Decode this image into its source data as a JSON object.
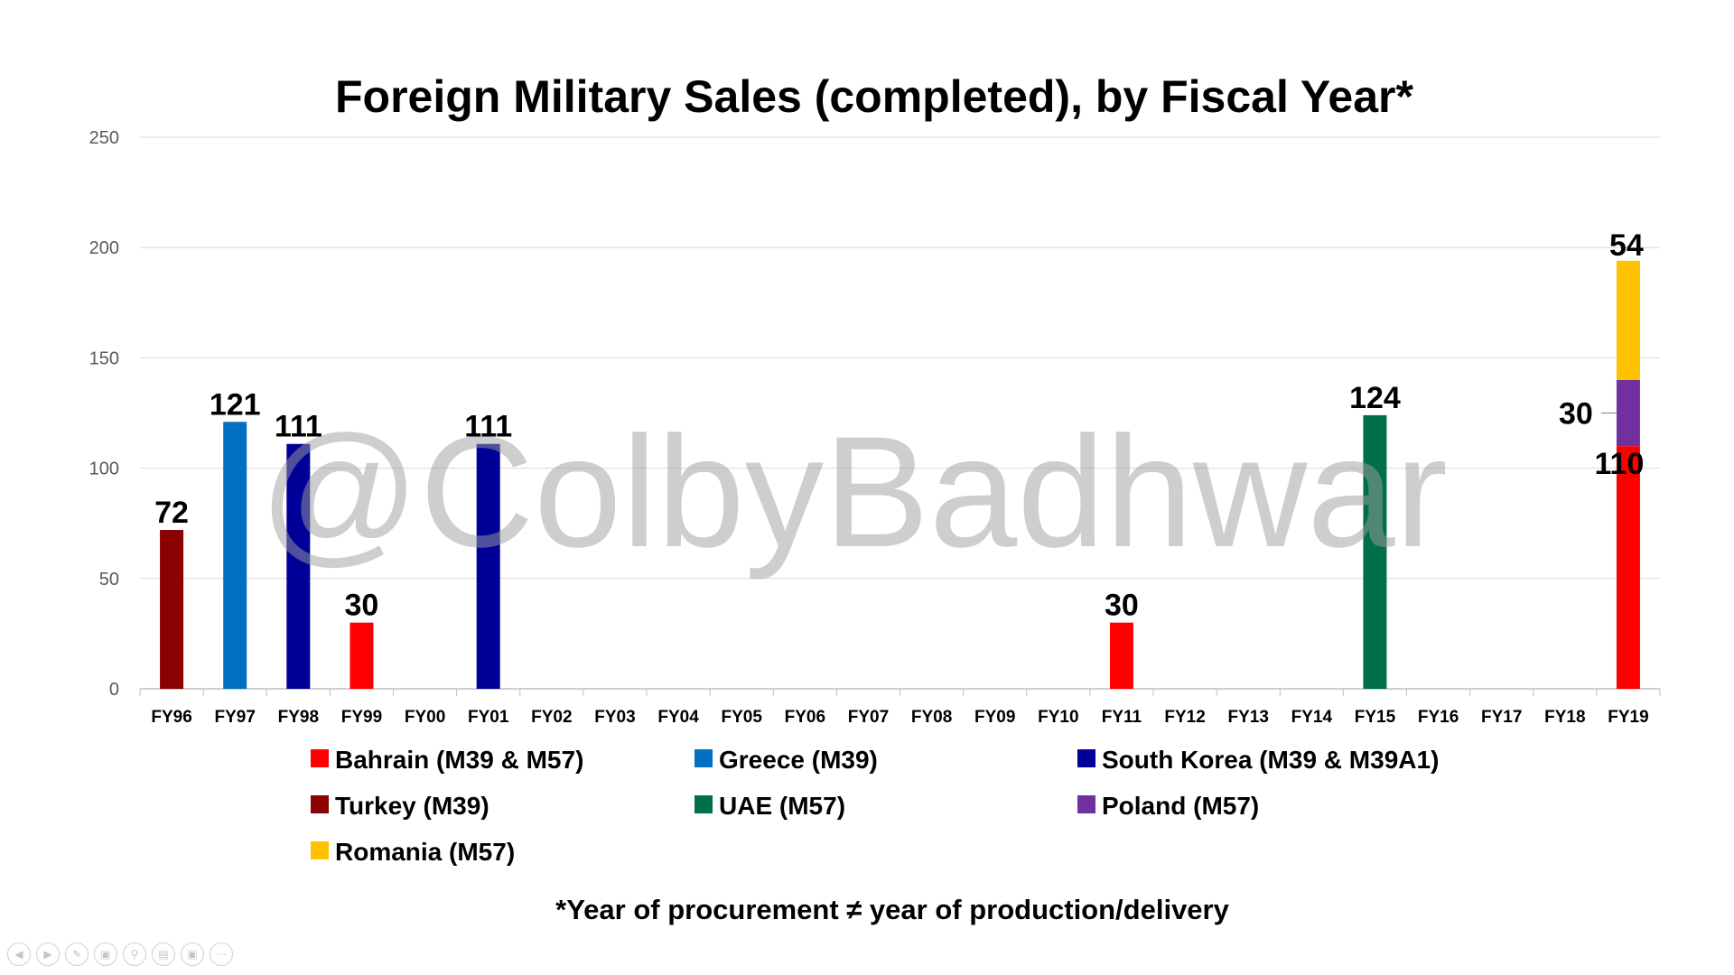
{
  "chart_data": {
    "type": "bar",
    "stacked": true,
    "title": "Foreign Military Sales (completed), by Fiscal Year*",
    "xlabel": "",
    "ylabel": "",
    "ylim": [
      0,
      250
    ],
    "yticks": [
      0,
      50,
      100,
      150,
      200,
      250
    ],
    "grid": true,
    "categories": [
      "FY96",
      "FY97",
      "FY98",
      "FY99",
      "FY00",
      "FY01",
      "FY02",
      "FY03",
      "FY04",
      "FY05",
      "FY06",
      "FY07",
      "FY08",
      "FY09",
      "FY10",
      "FY11",
      "FY12",
      "FY13",
      "FY14",
      "FY15",
      "FY16",
      "FY17",
      "FY18",
      "FY19"
    ],
    "series": [
      {
        "name": "Bahrain (M39 & M57)",
        "color": "#ff0000",
        "values": [
          0,
          0,
          0,
          30,
          0,
          0,
          0,
          0,
          0,
          0,
          0,
          0,
          0,
          0,
          0,
          30,
          0,
          0,
          0,
          0,
          0,
          0,
          0,
          110
        ]
      },
      {
        "name": "Greece (M39)",
        "color": "#0070c0",
        "values": [
          0,
          121,
          0,
          0,
          0,
          0,
          0,
          0,
          0,
          0,
          0,
          0,
          0,
          0,
          0,
          0,
          0,
          0,
          0,
          0,
          0,
          0,
          0,
          0
        ]
      },
      {
        "name": "South Korea (M39 & M39A1)",
        "color": "#000099",
        "values": [
          0,
          0,
          111,
          0,
          0,
          111,
          0,
          0,
          0,
          0,
          0,
          0,
          0,
          0,
          0,
          0,
          0,
          0,
          0,
          0,
          0,
          0,
          0,
          0
        ]
      },
      {
        "name": "Turkey (M39)",
        "color": "#8b0000",
        "values": [
          72,
          0,
          0,
          0,
          0,
          0,
          0,
          0,
          0,
          0,
          0,
          0,
          0,
          0,
          0,
          0,
          0,
          0,
          0,
          0,
          0,
          0,
          0,
          0
        ]
      },
      {
        "name": "UAE (M57)",
        "color": "#00704a",
        "values": [
          0,
          0,
          0,
          0,
          0,
          0,
          0,
          0,
          0,
          0,
          0,
          0,
          0,
          0,
          0,
          0,
          0,
          0,
          0,
          124,
          0,
          0,
          0,
          0
        ]
      },
      {
        "name": "Poland (M57)",
        "color": "#7030a0",
        "values": [
          0,
          0,
          0,
          0,
          0,
          0,
          0,
          0,
          0,
          0,
          0,
          0,
          0,
          0,
          0,
          0,
          0,
          0,
          0,
          0,
          0,
          0,
          0,
          30
        ]
      },
      {
        "name": "Romania (M57)",
        "color": "#ffc000",
        "values": [
          0,
          0,
          0,
          0,
          0,
          0,
          0,
          0,
          0,
          0,
          0,
          0,
          0,
          0,
          0,
          0,
          0,
          0,
          0,
          0,
          0,
          0,
          0,
          54
        ]
      }
    ],
    "legend_position": "bottom",
    "footnote": "*Year of procurement ≠ year of production/delivery",
    "watermark": "@ColbyBadhwar"
  },
  "nav": {
    "icons": [
      "prev-icon",
      "next-icon",
      "pen-icon",
      "slides-icon",
      "zoom-icon",
      "subtitles-icon",
      "camera-icon",
      "more-icon"
    ]
  }
}
